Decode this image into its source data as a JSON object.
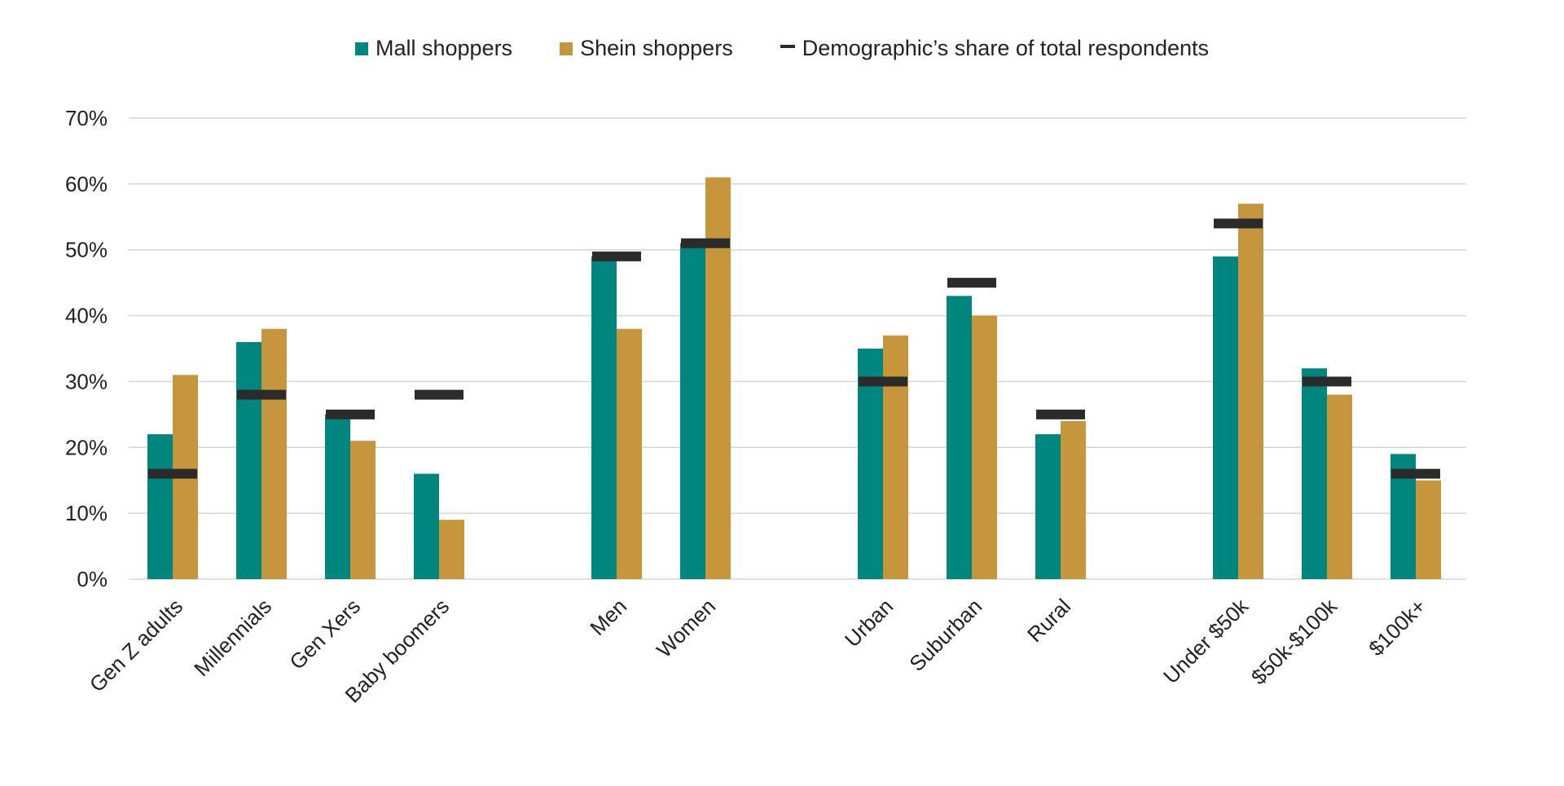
{
  "chart_data": {
    "type": "bar",
    "title": "",
    "xlabel": "",
    "ylabel": "",
    "ylim": [
      0,
      70
    ],
    "yticks": [
      0,
      10,
      20,
      30,
      40,
      50,
      60,
      70
    ],
    "ytick_suffix": "%",
    "grid": true,
    "legend_placement": "top-center",
    "categories": [
      "Gen Z adults",
      "Millennials",
      "Gen Xers",
      "Baby boomers",
      "Men",
      "Women",
      "Urban",
      "Suburban",
      "Rural",
      "Under $50k",
      "$50k-$100k",
      "$100k+"
    ],
    "groups": [
      [
        0,
        1,
        2,
        3
      ],
      [
        4,
        5
      ],
      [
        6,
        7,
        8
      ],
      [
        9,
        10,
        11
      ]
    ],
    "series": [
      {
        "name": "Mall shoppers",
        "color": "#00857f",
        "values": [
          22,
          36,
          25,
          16,
          49,
          51,
          35,
          43,
          22,
          49,
          32,
          19
        ]
      },
      {
        "name": "Shein shoppers",
        "color": "#c6963d",
        "values": [
          31,
          38,
          21,
          9,
          38,
          61,
          37,
          40,
          24,
          57,
          28,
          15
        ]
      }
    ],
    "marker_series": {
      "name": "Demographic’s share of total respondents",
      "color": "#2b2b2b",
      "values": [
        16,
        28,
        25,
        28,
        49,
        51,
        30,
        45,
        25,
        54,
        30,
        16
      ]
    }
  }
}
